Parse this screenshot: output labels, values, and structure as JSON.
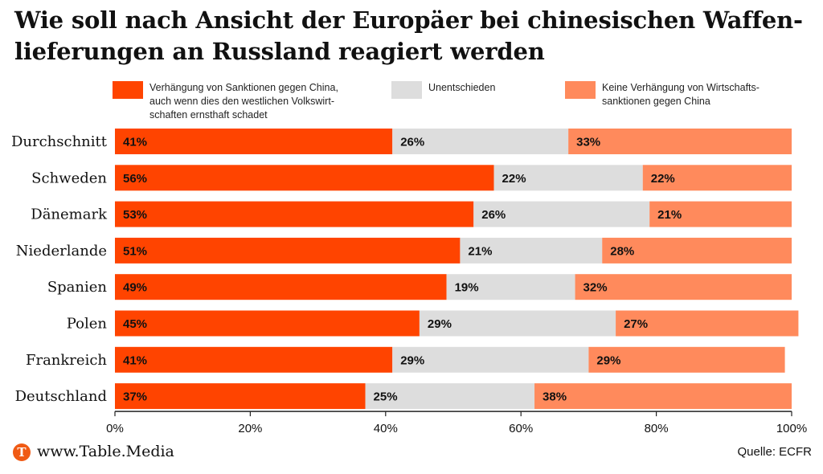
{
  "title_lines": [
    "Wie soll nach Ansicht der Europäer bei chinesischen Waffen-",
    "lieferungen an Russland reagiert werden"
  ],
  "legend": [
    {
      "label": "Verhängung von Sanktionen gegen China,\nauch wenn dies den westlichen Volkswirt-\nschaften ernsthaft schadet",
      "color": "#ff4400"
    },
    {
      "label": "Unentschieden",
      "color": "#dddddd"
    },
    {
      "label": "Keine Verhängung von Wirtschafts-\nsanktionen gegen China",
      "color": "#ff8a5c"
    }
  ],
  "chart_data": {
    "type": "bar",
    "orientation": "horizontal",
    "stacked": true,
    "categories": [
      "Durchschnitt",
      "Schweden",
      "Dänemark",
      "Niederlande",
      "Spanien",
      "Polen",
      "Frankreich",
      "Deutschland"
    ],
    "series": [
      {
        "name": "Verhängung von Sanktionen gegen China, auch wenn dies den westlichen Volkswirtschaften ernsthaft schadet",
        "color": "#ff4400",
        "values": [
          41,
          56,
          53,
          51,
          49,
          45,
          41,
          37
        ]
      },
      {
        "name": "Unentschieden",
        "color": "#dddddd",
        "values": [
          26,
          22,
          26,
          21,
          19,
          29,
          29,
          25
        ]
      },
      {
        "name": "Keine Verhängung von Wirtschaftssanktionen gegen China",
        "color": "#ff8a5c",
        "values": [
          33,
          22,
          21,
          28,
          32,
          27,
          29,
          38
        ]
      }
    ],
    "xlim": [
      0,
      100
    ],
    "xticks": [
      "0%",
      "20%",
      "40%",
      "60%",
      "80%",
      "100%"
    ],
    "value_suffix": "%",
    "grid": false,
    "legend_position": "top"
  },
  "footer": {
    "logo_letter": "T",
    "site": "www.Table.Media",
    "source": "Quelle: ECFR"
  }
}
